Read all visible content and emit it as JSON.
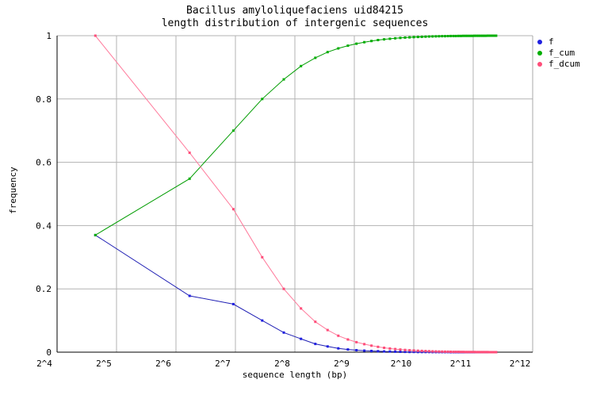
{
  "title": {
    "line1": "Bacillus amyloliquefaciens uid84215",
    "line2": "length distribution of intergenic sequences"
  },
  "axes": {
    "x_label": "sequence length (bp)",
    "y_label": "frequency"
  },
  "colors": {
    "grid": "#b3b3b3",
    "border": "#a8a8a8",
    "axis": "#000000",
    "background": "#ffffff"
  },
  "chart_data": {
    "type": "line",
    "title": "Bacillus amyloliquefaciens uid84215 — length distribution of intergenic sequences",
    "xlabel": "sequence length (bp)",
    "ylabel": "frequency",
    "x_scale": "log2",
    "xlim": [
      16,
      4096
    ],
    "ylim": [
      0,
      1
    ],
    "grid": true,
    "legend_position": "top-right-outside",
    "x_tick_values": [
      16,
      32,
      64,
      128,
      256,
      512,
      1024,
      2048,
      4096
    ],
    "x_tick_labels": [
      "2^4",
      "2^5",
      "2^6",
      "2^7",
      "2^8",
      "2^9",
      "2^10",
      "2^11",
      "2^12"
    ],
    "y_ticks": [
      0,
      0.2,
      0.4,
      0.6,
      0.8,
      1
    ],
    "y_tick_labels": [
      "0",
      "0.2",
      "0.4",
      "0.6",
      "0.8",
      "1"
    ],
    "x": [
      25,
      75,
      125,
      175,
      225,
      275,
      325,
      375,
      425,
      475,
      525,
      575,
      625,
      675,
      725,
      775,
      825,
      875,
      925,
      975,
      1025,
      1075,
      1125,
      1175,
      1225,
      1275,
      1325,
      1375,
      1425,
      1475,
      1525,
      1575,
      1625,
      1675,
      1725,
      1775,
      1825,
      1875,
      1925,
      1975,
      2025,
      2075,
      2125,
      2175,
      2225,
      2275,
      2325,
      2375,
      2425,
      2475,
      2525,
      2575,
      2625,
      2675
    ],
    "series": [
      {
        "name": "f",
        "line_color": "#1f1fb4",
        "marker_color": "#2020e0",
        "values": [
          0.37,
          0.178,
          0.152,
          0.1,
          0.062,
          0.042,
          0.026,
          0.018,
          0.012,
          0.0085,
          0.0063,
          0.0047,
          0.0037,
          0.0029,
          0.0023,
          0.0019,
          0.0015,
          0.0012,
          0.001,
          0.0008,
          0.0007,
          0.0006,
          0.0005,
          0.0004,
          0.0004,
          0.0003,
          0.0003,
          0.0002,
          0.0002,
          0.0002,
          0.0002,
          0.0001,
          0.0001,
          0.0001,
          0.0001,
          0.0001,
          0.0001,
          5e-05,
          5e-05,
          5e-05,
          5e-05,
          5e-05,
          5e-05,
          3e-05,
          3e-05,
          3e-05,
          3e-05,
          3e-05,
          3e-05,
          2e-05,
          2e-05,
          3e-05,
          2e-05,
          3e-05
        ]
      },
      {
        "name": "f_cum",
        "line_color": "#009c00",
        "marker_color": "#00ae00",
        "values": [
          0.37,
          0.548,
          0.7,
          0.8,
          0.862,
          0.904,
          0.93,
          0.948,
          0.96,
          0.9685,
          0.9748,
          0.9795,
          0.9832,
          0.9861,
          0.9884,
          0.9903,
          0.9918,
          0.993,
          0.994,
          0.9948,
          0.9955,
          0.9961,
          0.9966,
          0.997,
          0.9974,
          0.9977,
          0.998,
          0.9982,
          0.9984,
          0.9986,
          0.9988,
          0.9989,
          0.999,
          0.9991,
          0.9992,
          0.9993,
          0.9994,
          0.99945,
          0.9995,
          0.99955,
          0.9996,
          0.99965,
          0.9997,
          0.99973,
          0.99976,
          0.99979,
          0.99982,
          0.99985,
          0.99988,
          0.9999,
          0.99992,
          0.99995,
          0.99997,
          1.0
        ]
      },
      {
        "name": "f_dcum",
        "line_color": "#ff7b9c",
        "marker_color": "#ff4d79",
        "values": [
          1.0,
          0.63,
          0.452,
          0.3,
          0.2,
          0.138,
          0.096,
          0.07,
          0.052,
          0.04,
          0.0315,
          0.0252,
          0.0205,
          0.0168,
          0.0139,
          0.0116,
          0.0097,
          0.0082,
          0.007,
          0.006,
          0.0052,
          0.0045,
          0.0039,
          0.0034,
          0.003,
          0.0026,
          0.0023,
          0.002,
          0.0018,
          0.0016,
          0.0014,
          0.0012,
          0.0011,
          0.001,
          0.0009,
          0.0008,
          0.0007,
          0.0006,
          0.00055,
          0.0005,
          0.00045,
          0.0004,
          0.00035,
          0.0003,
          0.00027,
          0.00024,
          0.00021,
          0.00018,
          0.00015,
          0.00012,
          0.0001,
          8e-05,
          5e-05,
          3e-05
        ]
      }
    ]
  }
}
